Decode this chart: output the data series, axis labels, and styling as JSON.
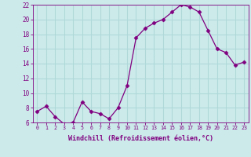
{
  "x": [
    0,
    1,
    2,
    3,
    4,
    5,
    6,
    7,
    8,
    9,
    10,
    11,
    12,
    13,
    14,
    15,
    16,
    17,
    18,
    19,
    20,
    21,
    22,
    23
  ],
  "y": [
    7.5,
    8.2,
    6.8,
    5.8,
    6.0,
    8.8,
    7.5,
    7.2,
    6.5,
    8.0,
    11.0,
    17.5,
    18.8,
    19.5,
    20.0,
    21.0,
    22.0,
    21.7,
    21.0,
    18.5,
    16.0,
    15.5,
    13.8,
    14.2
  ],
  "line_color": "#800080",
  "marker": "D",
  "marker_size": 2.5,
  "bg_color": "#cceaea",
  "grid_color": "#b0d8d8",
  "xlabel": "Windchill (Refroidissement éolien,°C)",
  "xlabel_color": "#800080",
  "tick_color": "#800080",
  "ylim": [
    6,
    22
  ],
  "ytick_values": [
    6,
    8,
    10,
    12,
    14,
    16,
    18,
    20,
    22
  ],
  "ytick_labels": [
    "6",
    "8",
    "10",
    "12",
    "14",
    "16",
    "18",
    "20",
    "22"
  ],
  "xticks": [
    0,
    1,
    2,
    3,
    4,
    5,
    6,
    7,
    8,
    9,
    10,
    11,
    12,
    13,
    14,
    15,
    16,
    17,
    18,
    19,
    20,
    21,
    22,
    23
  ]
}
